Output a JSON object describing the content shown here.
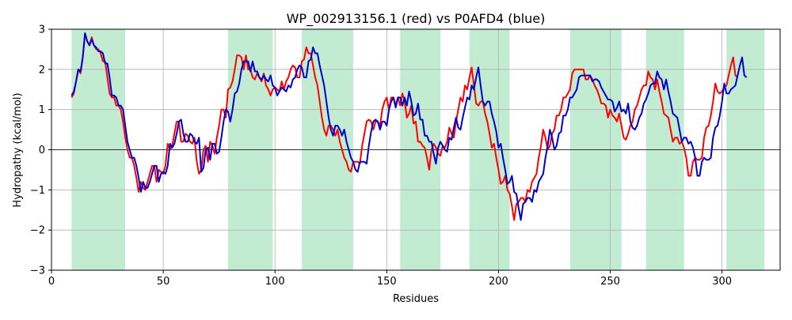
{
  "chart_data": {
    "type": "line",
    "title": "WP_002913156.1 (red) vs P0AFD4 (blue)",
    "xlabel": "Residues",
    "ylabel": "Hydropathy (kcal/mol)",
    "xlim": [
      0,
      326
    ],
    "ylim": [
      -3,
      3
    ],
    "xticks": [
      0,
      50,
      100,
      150,
      200,
      250,
      300
    ],
    "yticks": [
      -3,
      -2,
      -1,
      0,
      1,
      2,
      3
    ],
    "grid": true,
    "zero_line": true,
    "highlight_color": "#c2ecd2",
    "highlight_regions": [
      [
        9,
        33
      ],
      [
        79,
        99
      ],
      [
        112,
        135
      ],
      [
        156,
        174
      ],
      [
        187,
        205
      ],
      [
        232,
        255
      ],
      [
        266,
        283
      ],
      [
        302,
        319
      ]
    ],
    "x_start": 9,
    "series": [
      {
        "color": "#ff0000",
        "values": [
          1.3,
          1.4,
          1.7,
          2.0,
          1.9,
          2.3,
          2.9,
          2.7,
          2.6,
          2.8,
          2.6,
          2.5,
          2.5,
          2.4,
          2.2,
          2.2,
          1.8,
          1.4,
          1.3,
          1.3,
          1.1,
          1.1,
          1.0,
          0.7,
          0.3,
          0.0,
          -0.2,
          -0.2,
          -0.4,
          -0.7,
          -1.05,
          -0.8,
          -0.95,
          -1.0,
          -0.8,
          -0.6,
          -0.4,
          -0.4,
          -0.8,
          -0.5,
          -0.55,
          -0.6,
          -0.4,
          0.15,
          0.0,
          0.1,
          0.4,
          0.7,
          0.7,
          0.2,
          0.2,
          0.4,
          0.35,
          0.2,
          0.15,
          0.3,
          -0.3,
          -0.6,
          -0.5,
          0.0,
          0.1,
          -0.3,
          0.2,
          0.1,
          -0.1,
          0.3,
          0.6,
          1.0,
          1.0,
          0.8,
          1.5,
          1.55,
          1.7,
          2.0,
          2.35,
          2.35,
          2.3,
          2.0,
          2.35,
          2.0,
          2.0,
          1.8,
          1.75,
          1.9,
          1.8,
          1.7,
          1.9,
          1.6,
          1.5,
          1.35,
          1.5,
          1.55,
          1.5,
          1.45,
          1.7,
          1.5,
          1.7,
          1.8,
          2.0,
          2.1,
          2.05,
          1.8,
          1.8,
          2.2,
          2.25,
          2.55,
          2.4,
          2.4,
          2.1,
          1.8,
          1.6,
          1.2,
          0.8,
          0.5,
          0.35,
          0.6,
          0.6,
          0.5,
          0.35,
          0.5,
          0.2,
          0.0,
          -0.2,
          -0.3,
          -0.5,
          -0.55,
          -0.3,
          -0.3,
          -0.3,
          -0.35,
          0.1,
          0.4,
          0.7,
          0.75,
          0.7,
          0.5,
          0.7,
          0.7,
          0.6,
          1.0,
          1.2,
          1.3,
          1.0,
          1.3,
          1.3,
          1.1,
          1.3,
          1.1,
          1.4,
          1.2,
          0.8,
          0.9,
          1.1,
          0.65,
          0.7,
          0.2,
          0.2,
          0.1,
          0.05,
          -0.2,
          -0.5,
          0.0,
          0.15,
          0.05,
          -0.1,
          -0.15,
          0.1,
          0.05,
          0.2,
          0.55,
          0.4,
          0.3,
          0.7,
          1.0,
          1.3,
          1.2,
          1.6,
          1.5,
          1.8,
          2.05,
          1.6,
          1.15,
          1.1,
          1.2,
          1.2,
          0.9,
          0.7,
          0.4,
          0.05,
          0.15,
          -0.2,
          -0.5,
          -0.85,
          -0.8,
          -0.65,
          -1.0,
          -1.1,
          -1.4,
          -1.75,
          -1.35,
          -1.3,
          -1.2,
          -1.2,
          -1.3,
          -1.0,
          -1.05,
          -0.8,
          -0.7,
          -0.6,
          -0.2,
          0.1,
          0.5,
          0.3,
          0.0,
          0.1,
          0.4,
          0.5,
          0.85,
          0.85,
          1.0,
          1.3,
          1.3,
          1.4,
          1.5,
          1.9,
          2.0,
          2.0,
          2.0,
          2.0,
          2.0,
          1.75,
          1.75,
          1.85,
          1.75,
          1.6,
          1.5,
          1.35,
          1.15,
          1.15,
          1.1,
          0.8,
          1.0,
          0.85,
          0.8,
          0.7,
          0.9,
          0.6,
          0.3,
          0.25,
          0.4,
          0.6,
          0.7,
          1.0,
          1.1,
          1.3,
          1.5,
          1.6,
          1.6,
          1.95,
          1.8,
          1.75,
          1.5,
          1.75,
          1.45,
          1.2,
          0.9,
          0.85,
          0.8,
          0.5,
          0.2,
          0.3,
          0.3,
          0.15,
          0.2,
          0.05,
          -0.2,
          -0.65,
          -0.65,
          -0.3,
          -0.2,
          -0.25,
          -0.25,
          -0.2,
          0.3,
          0.55,
          0.6,
          0.85,
          1.2,
          1.65,
          1.45,
          1.4,
          1.45,
          1.55,
          1.6,
          1.85,
          2.1,
          2.3,
          1.85,
          1.8
        ]
      },
      {
        "color": "#0000cc",
        "values": [
          1.35,
          1.45,
          1.7,
          2.0,
          1.95,
          2.3,
          2.9,
          2.7,
          2.6,
          2.75,
          2.6,
          2.55,
          2.45,
          2.45,
          2.4,
          2.15,
          2.15,
          1.8,
          1.35,
          1.35,
          1.3,
          1.1,
          1.1,
          1.0,
          0.6,
          0.2,
          0.0,
          -0.2,
          -0.2,
          -0.4,
          -0.7,
          -1.05,
          -0.8,
          -0.95,
          -0.95,
          -0.8,
          -0.6,
          -0.4,
          -0.4,
          -0.8,
          -0.6,
          -0.55,
          -0.6,
          -0.4,
          0.15,
          0.05,
          0.15,
          0.4,
          0.7,
          0.75,
          0.4,
          0.2,
          0.2,
          0.4,
          0.35,
          0.2,
          0.15,
          0.3,
          -0.55,
          -0.45,
          0.0,
          0.05,
          -0.25,
          0.15,
          0.15,
          -0.1,
          -0.05,
          0.3,
          0.7,
          1.0,
          0.95,
          0.7,
          1.0,
          1.4,
          1.45,
          1.65,
          2.0,
          2.2,
          2.2,
          2.2,
          1.95,
          2.2,
          1.95,
          1.95,
          1.8,
          1.75,
          1.85,
          1.75,
          1.7,
          1.85,
          1.6,
          1.55,
          1.35,
          1.45,
          1.55,
          1.5,
          1.45,
          1.6,
          1.55,
          1.75,
          1.8,
          2.0,
          2.1,
          2.05,
          1.8,
          1.8,
          2.2,
          2.25,
          2.55,
          2.4,
          2.4,
          2.1,
          1.85,
          1.6,
          1.2,
          0.8,
          0.5,
          0.35,
          0.6,
          0.6,
          0.5,
          0.35,
          0.5,
          0.2,
          0.0,
          -0.2,
          -0.3,
          -0.5,
          -0.55,
          -0.3,
          -0.3,
          -0.3,
          -0.35,
          0.1,
          0.45,
          0.7,
          0.75,
          0.7,
          0.5,
          0.7,
          0.7,
          0.6,
          1.0,
          1.2,
          1.3,
          1.05,
          1.3,
          1.3,
          1.1,
          1.3,
          1.1,
          1.45,
          1.2,
          0.85,
          0.9,
          1.15,
          0.75,
          0.75,
          0.35,
          0.35,
          0.2,
          0.2,
          -0.1,
          -0.35,
          0.05,
          0.2,
          0.1,
          0.0,
          -0.05,
          0.3,
          0.25,
          0.55,
          0.8,
          0.55,
          0.5,
          0.8,
          1.05,
          1.3,
          1.25,
          1.6,
          1.5,
          1.8,
          2.05,
          1.6,
          1.2,
          1.1,
          1.2,
          1.2,
          0.9,
          0.7,
          0.45,
          0.05,
          0.15,
          -0.2,
          -0.5,
          -0.85,
          -0.8,
          -0.65,
          -1.05,
          -1.1,
          -1.45,
          -1.75,
          -1.35,
          -1.3,
          -1.2,
          -1.2,
          -1.3,
          -1.0,
          -1.05,
          -0.8,
          -0.7,
          -0.6,
          -0.2,
          0.1,
          0.5,
          0.3,
          0.0,
          0.1,
          0.4,
          0.45,
          0.85,
          0.85,
          1.0,
          1.3,
          1.3,
          1.4,
          1.5,
          1.8,
          1.85,
          1.85,
          1.85,
          1.85,
          1.85,
          1.7,
          1.75,
          1.75,
          1.7,
          1.55,
          1.45,
          1.35,
          1.25,
          1.25,
          1.2,
          0.95,
          1.05,
          1.2,
          0.95,
          1.0,
          0.9,
          1.15,
          0.7,
          0.55,
          0.5,
          0.6,
          0.8,
          0.9,
          1.15,
          1.25,
          1.4,
          1.6,
          1.65,
          1.65,
          1.95,
          1.8,
          1.75,
          1.5,
          1.75,
          1.45,
          1.2,
          0.9,
          0.85,
          0.8,
          0.5,
          0.2,
          0.3,
          0.3,
          0.15,
          0.2,
          0.05,
          -0.2,
          -0.65,
          -0.65,
          -0.3,
          -0.2,
          -0.25,
          -0.25,
          -0.2,
          0.3,
          0.55,
          0.6,
          0.85,
          1.2,
          1.65,
          1.4,
          1.4,
          1.5,
          1.55,
          1.6,
          1.85,
          2.1,
          2.3,
          1.85,
          1.8
        ]
      }
    ]
  }
}
